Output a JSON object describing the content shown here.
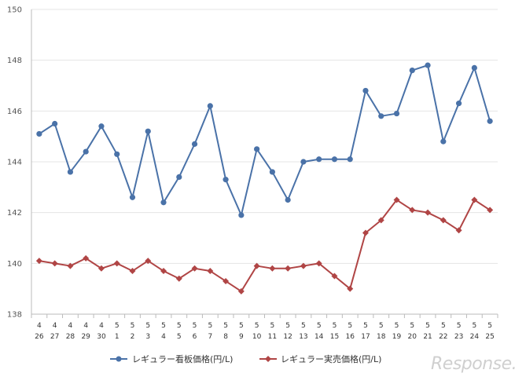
{
  "chart_data": {
    "type": "line",
    "categories": [
      {
        "month": "4",
        "day": "26"
      },
      {
        "month": "4",
        "day": "27"
      },
      {
        "month": "4",
        "day": "28"
      },
      {
        "month": "4",
        "day": "29"
      },
      {
        "month": "4",
        "day": "30"
      },
      {
        "month": "5",
        "day": "1"
      },
      {
        "month": "5",
        "day": "2"
      },
      {
        "month": "5",
        "day": "3"
      },
      {
        "month": "5",
        "day": "4"
      },
      {
        "month": "5",
        "day": "5"
      },
      {
        "month": "5",
        "day": "6"
      },
      {
        "month": "5",
        "day": "7"
      },
      {
        "month": "5",
        "day": "8"
      },
      {
        "month": "5",
        "day": "9"
      },
      {
        "month": "5",
        "day": "10"
      },
      {
        "month": "5",
        "day": "11"
      },
      {
        "month": "5",
        "day": "12"
      },
      {
        "month": "5",
        "day": "13"
      },
      {
        "month": "5",
        "day": "14"
      },
      {
        "month": "5",
        "day": "15"
      },
      {
        "month": "5",
        "day": "16"
      },
      {
        "month": "5",
        "day": "17"
      },
      {
        "month": "5",
        "day": "18"
      },
      {
        "month": "5",
        "day": "19"
      },
      {
        "month": "5",
        "day": "20"
      },
      {
        "month": "5",
        "day": "21"
      },
      {
        "month": "5",
        "day": "22"
      },
      {
        "month": "5",
        "day": "23"
      },
      {
        "month": "5",
        "day": "24"
      },
      {
        "month": "5",
        "day": "25"
      }
    ],
    "series": [
      {
        "name": "レギュラー看板価格(円/L)",
        "color": "#4a72a8",
        "marker": "circle",
        "values": [
          145.1,
          145.5,
          143.6,
          144.4,
          145.4,
          144.3,
          142.6,
          145.2,
          142.4,
          143.4,
          144.7,
          146.2,
          143.3,
          141.9,
          144.5,
          143.6,
          142.5,
          144.0,
          144.1,
          144.1,
          144.1,
          146.8,
          145.8,
          145.9,
          147.6,
          147.8,
          144.8,
          146.3,
          147.7,
          145.6
        ]
      },
      {
        "name": "レギュラー実売価格(円/L)",
        "color": "#b04545",
        "marker": "diamond",
        "values": [
          140.1,
          140.0,
          139.9,
          140.2,
          139.8,
          140.0,
          139.7,
          140.1,
          139.7,
          139.4,
          139.8,
          139.7,
          139.3,
          138.9,
          139.9,
          139.8,
          139.8,
          139.9,
          140.0,
          139.5,
          139.0,
          141.2,
          141.7,
          142.5,
          142.1,
          142.0,
          141.7,
          141.3,
          142.5,
          142.1
        ]
      }
    ],
    "ylim": [
      138,
      150
    ],
    "yticks": [
      "138",
      "140",
      "142",
      "144",
      "146",
      "148",
      "150"
    ],
    "grid": true,
    "legend": "bottom"
  },
  "watermark": "Response."
}
